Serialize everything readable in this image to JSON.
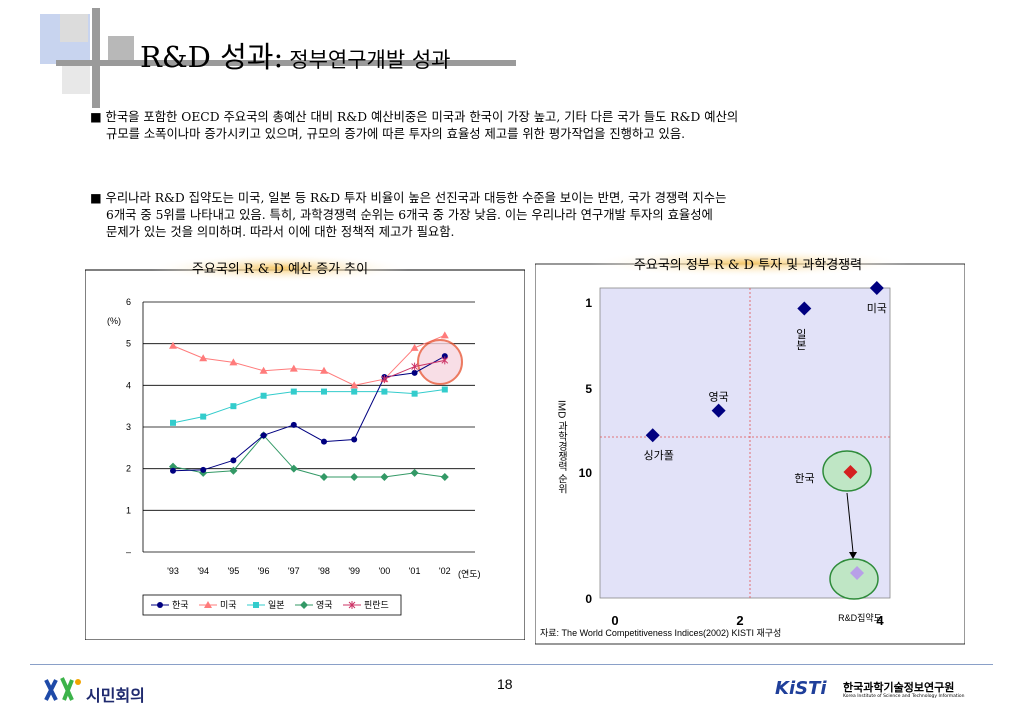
{
  "slide": {
    "title": "R&D 성과:",
    "subtitle": "정부연구개발 성과",
    "bullets": [
      {
        "marker": "■",
        "text": "한국을 포함한 OECD 주요국의 총예산 대비 R&D 예산비중은 미국과 한국이 가장 높고, 기타 다른 국가 들도 R&D 예산의",
        "line2": "규모를 소폭이나마 증가시키고 있으며, 규모의 증가에 따른 투자의 효율성 제고를   위한 평가작업을 진행하고 있음."
      },
      {
        "marker": "■",
        "text": "우리나라 R&D 집약도는 미국, 일본 등 R&D 투자 비율이 높은 선진국과 대등한 수준을 보이는  반면, 국가 경쟁력 지수는",
        "line2": "6개국 중 5위를 나타내고 있음. 특히, 과학경쟁력 순위는 6개국 중  가장 낮음. 이는 우리나라 연구개발 투자의 효율성에",
        "line3": "문제가 있는 것을 의미하며. 따라서 이에  대한 정책적 제고가 필요함."
      }
    ],
    "page_number": "18",
    "logo_left_text": "시민회의",
    "logo_right_brand": "KiSTi",
    "logo_right_text": "한국과학기술정보연구원",
    "logo_right_sub": "Korea Institute of Science and Technology Information"
  },
  "colors": {
    "highlight": "#f7c96a",
    "korea": "#000080",
    "usa": "#ff7b7b",
    "japan": "#33cccc",
    "uk": "#339966",
    "finland": "#cc3366",
    "quad_fill": "#e2e2f8"
  },
  "chart_data": [
    {
      "type": "line",
      "caption": "주요국의 R & D 예산 증가 추이",
      "ylabel": "(%)",
      "ylim": [
        0,
        6
      ],
      "ytick_labels": [
        "6",
        "5",
        "4",
        "3",
        "2",
        "1",
        "–"
      ],
      "categories": [
        "'93",
        "'94",
        "'95",
        "'96",
        "'97",
        "'98",
        "'99",
        "'00",
        "'01",
        "'02"
      ],
      "x_unit": "(연도)",
      "grid": true,
      "legend": "bottom",
      "series": [
        {
          "name": "한국",
          "values": [
            1.95,
            1.97,
            2.2,
            2.8,
            3.05,
            2.65,
            2.7,
            4.2,
            4.3,
            4.7
          ]
        },
        {
          "name": "미국",
          "values": [
            4.95,
            4.65,
            4.55,
            4.35,
            4.4,
            4.35,
            4.0,
            4.15,
            4.9,
            5.2
          ]
        },
        {
          "name": "일본",
          "values": [
            3.1,
            3.25,
            3.5,
            3.75,
            3.85,
            3.85,
            3.85,
            3.85,
            3.8,
            3.9
          ]
        },
        {
          "name": "영국",
          "values": [
            2.05,
            1.9,
            1.95,
            2.8,
            2.0,
            1.8,
            1.8,
            1.8,
            1.9,
            1.8
          ]
        },
        {
          "name": "핀란드",
          "values": [
            null,
            null,
            null,
            null,
            null,
            null,
            null,
            4.15,
            4.45,
            4.6
          ]
        }
      ]
    },
    {
      "type": "scatter",
      "caption": "주요국의 정부 R & D 투자 및 과학경쟁력",
      "ylabel": "IMD 과학경쟁력 순위",
      "xlabel": "R&D집약도",
      "x_tick_labels": [
        "0",
        "2",
        "4"
      ],
      "y_tick_labels": [
        "1",
        "5",
        "10",
        "0"
      ],
      "source": "자료: The World Competitiveness Indices(2002)   KISTI 재구성",
      "points": [
        {
          "name": "미국",
          "x": 4.2,
          "y": 1
        },
        {
          "name": "일본",
          "x": 3.1,
          "y": 2
        },
        {
          "name": "영국",
          "x": 1.8,
          "y": 7
        },
        {
          "name": "싱가폴",
          "x": 0.8,
          "y": 8.2
        },
        {
          "name": "한국",
          "x": 3.8,
          "y": 10
        },
        {
          "name": "",
          "x": 3.9,
          "y": 16.6
        }
      ]
    }
  ]
}
